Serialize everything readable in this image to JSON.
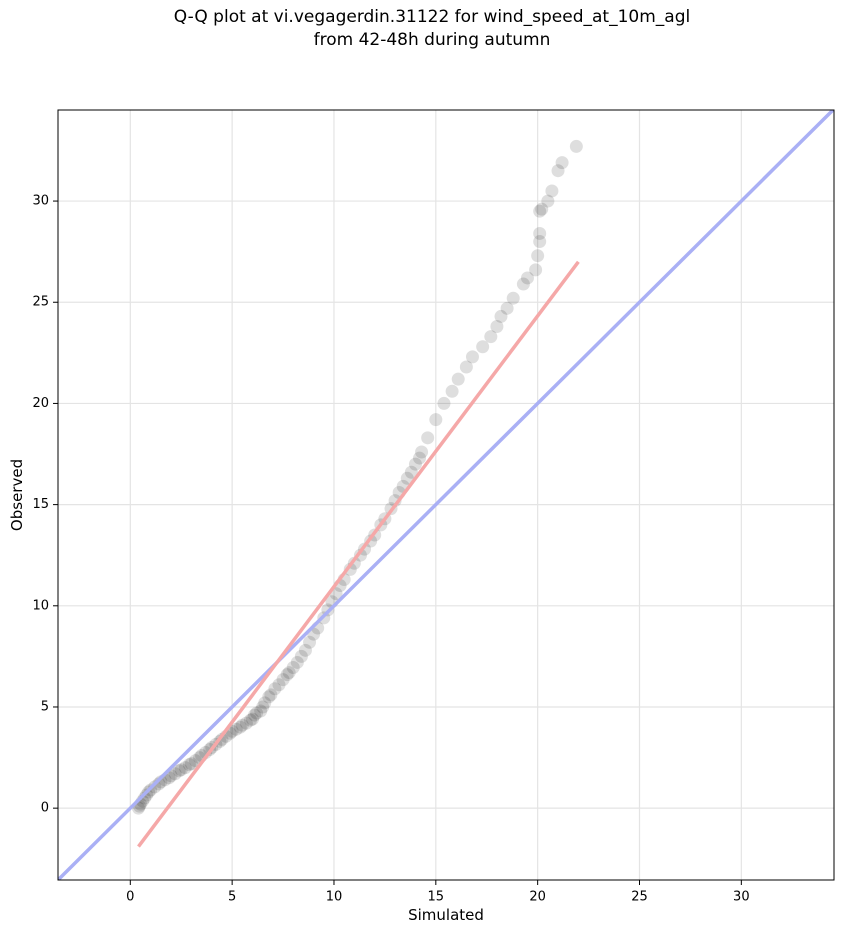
{
  "chart_data": {
    "type": "scatter",
    "title": [
      "Q-Q plot at vi.vegagerdin.31122 for wind_speed_at_10m_agl",
      "from 42-48h during autumn"
    ],
    "x_label": "Simulated",
    "y_label": "Observed",
    "xlim": [
      -3.55,
      34.55
    ],
    "ylim": [
      -3.55,
      34.5
    ],
    "xticks": [
      0,
      5,
      10,
      15,
      20,
      25,
      30
    ],
    "yticks": [
      0,
      5,
      10,
      15,
      20,
      25,
      30
    ],
    "grid": true,
    "color": "#000000",
    "x": [
      21.9,
      21.2,
      21.0,
      20.7,
      20.5,
      20.2,
      20.1,
      20.1,
      20.1,
      20.0,
      19.9,
      19.5,
      19.3,
      18.8,
      18.5,
      18.2,
      18.0,
      17.7,
      17.3,
      16.8,
      16.5,
      16.1,
      15.8,
      15.4,
      15.0,
      14.6,
      14.3,
      14.0,
      13.6,
      13.2,
      12.8,
      12.3,
      11.8,
      11.3,
      10.8,
      10.3,
      9.9,
      9.5,
      9.0,
      8.6,
      8.2,
      7.8,
      7.3,
      6.8,
      6.4,
      6.0,
      5.5,
      5.0,
      4.5,
      4.0,
      3.5,
      3.0,
      2.5,
      2.0,
      1.5,
      1.0,
      0.7,
      0.5,
      0.4,
      0.45,
      0.6,
      0.8,
      0.9,
      1.2,
      1.4,
      1.7,
      1.9,
      2.2,
      2.4,
      2.7,
      2.9,
      3.2,
      3.4,
      3.7,
      3.9,
      4.2,
      4.4,
      4.7,
      4.9,
      5.2,
      5.4,
      5.7,
      5.9,
      6.1,
      6.2,
      6.5,
      6.6,
      6.9,
      7.1,
      7.5,
      7.7,
      8.0,
      8.4,
      8.8,
      9.2,
      9.7,
      10.1,
      10.5,
      11.0,
      11.5,
      12.0,
      12.5,
      13.0,
      13.4,
      13.8,
      14.2
    ],
    "values": [
      32.7,
      31.9,
      31.5,
      30.5,
      30.0,
      29.6,
      29.5,
      28.4,
      28.0,
      27.3,
      26.6,
      26.2,
      25.9,
      25.2,
      24.7,
      24.3,
      23.8,
      23.3,
      22.8,
      22.3,
      21.8,
      21.2,
      20.6,
      20.0,
      19.2,
      18.3,
      17.6,
      17.0,
      16.3,
      15.6,
      14.8,
      14.0,
      13.2,
      12.5,
      11.8,
      11.0,
      10.2,
      9.4,
      8.6,
      7.8,
      7.2,
      6.7,
      6.1,
      5.5,
      4.8,
      4.4,
      4.1,
      3.8,
      3.4,
      3.0,
      2.6,
      2.2,
      1.9,
      1.6,
      1.3,
      0.9,
      0.5,
      0.2,
      0.0,
      0.1,
      0.35,
      0.65,
      0.8,
      1.05,
      1.2,
      1.4,
      1.5,
      1.7,
      1.85,
      2.0,
      2.15,
      2.35,
      2.5,
      2.75,
      2.9,
      3.15,
      3.3,
      3.55,
      3.7,
      3.9,
      4.0,
      4.2,
      4.35,
      4.6,
      4.7,
      5.0,
      5.2,
      5.6,
      5.9,
      6.35,
      6.6,
      6.95,
      7.5,
      8.2,
      8.9,
      9.8,
      10.6,
      11.3,
      12.1,
      12.8,
      13.5,
      14.3,
      15.2,
      15.9,
      16.6,
      17.3
    ],
    "reference_lines": [
      {
        "color": "#aab0f5",
        "x": [
          -3.55,
          34.55
        ],
        "values": [
          -3.55,
          34.55
        ]
      },
      {
        "color": "#f5a8a8",
        "x": [
          0.4,
          22.0
        ],
        "values": [
          -1.9,
          27.0
        ]
      }
    ]
  }
}
